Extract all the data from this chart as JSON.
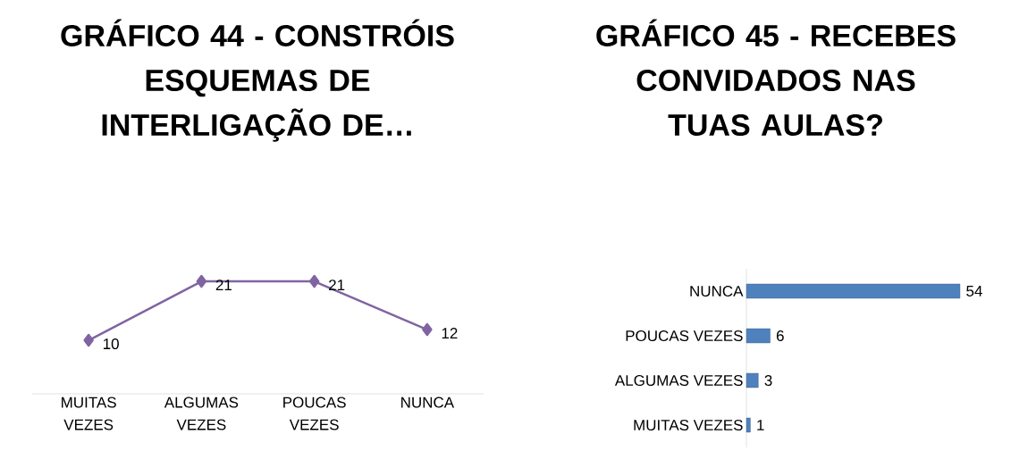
{
  "chart_data": [
    {
      "type": "line",
      "title": "GRÁFICO 44 - CONSTRÓIS ESQUEMAS DE INTERLIGAÇÃO DE…",
      "categories": [
        "MUITAS VEZES",
        "ALGUMAS VEZES",
        "POUCAS VEZES",
        "NUNCA"
      ],
      "values": [
        10,
        21,
        21,
        12
      ],
      "color": "#8064a2",
      "marker": "diamond",
      "data_labels": true
    },
    {
      "type": "bar",
      "orientation": "horizontal",
      "title": "GRÁFICO 45 - RECEBES CONVIDADOS NAS TUAS AULAS?",
      "categories": [
        "NUNCA",
        "POUCAS VEZES",
        "ALGUMAS VEZES",
        "MUITAS VEZES"
      ],
      "values": [
        54,
        6,
        3,
        1
      ],
      "color": "#4f81bd",
      "data_labels": true
    }
  ]
}
